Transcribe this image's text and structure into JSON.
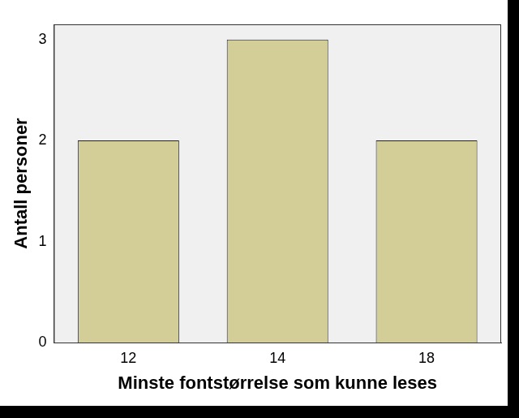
{
  "chart_data": {
    "type": "bar",
    "x_label": "Minste fontstørrelse som kunne leses",
    "y_label": "Antall personer",
    "categories": [
      "12",
      "14",
      "18"
    ],
    "values": [
      2,
      3,
      2
    ],
    "color": "#d3ce97",
    "ylim": [
      0,
      3.15
    ],
    "yticks": [
      0,
      1,
      2,
      3
    ],
    "grid": false
  }
}
